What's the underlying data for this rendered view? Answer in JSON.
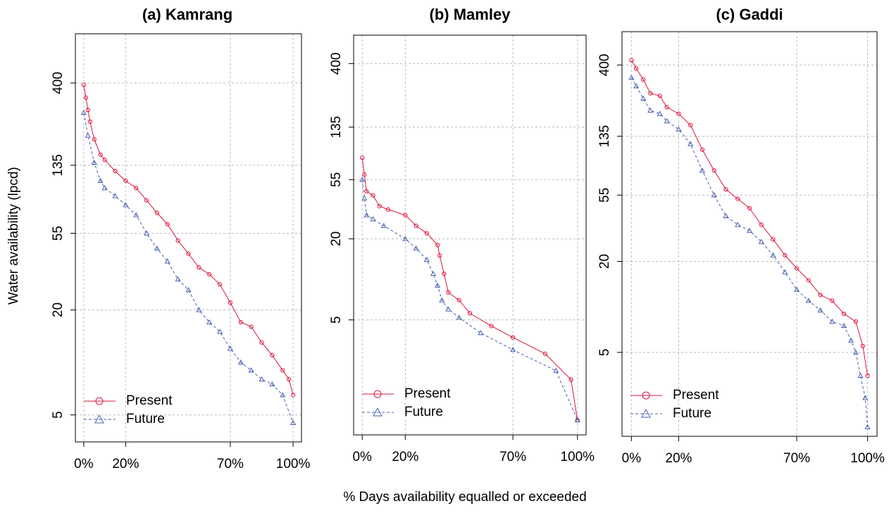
{
  "xlabel": "% Days availability equalled or exceeded",
  "ylabel": "Water availability (lpcd)",
  "chart_data": [
    {
      "type": "line",
      "title": "(a) Kamrang",
      "log_y": true,
      "grid": true,
      "legend": "bottom-left",
      "xlim": [
        -4,
        104
      ],
      "ylim": [
        3.5,
        766
      ],
      "xticks": [
        {
          "value": 0,
          "label": "0%"
        },
        {
          "value": 20,
          "label": "20%"
        },
        {
          "value": 70,
          "label": "70%"
        },
        {
          "value": 100,
          "label": "100%"
        }
      ],
      "yticks": [
        5,
        20,
        55,
        135,
        400
      ],
      "series": [
        {
          "name": "Present",
          "color": "#dc143c",
          "marker": "circle",
          "dash": false,
          "x": [
            0,
            1,
            2,
            3,
            5,
            8,
            10,
            15,
            20,
            25,
            30,
            35,
            40,
            45,
            50,
            55,
            60,
            65,
            70,
            75,
            80,
            85,
            90,
            95,
            98,
            100
          ],
          "values": [
            390,
            330,
            280,
            240,
            190,
            155,
            145,
            125,
            110,
            100,
            85,
            72,
            62,
            50,
            42,
            35,
            32,
            28,
            22,
            17,
            16,
            13,
            11,
            9,
            8,
            6.5
          ]
        },
        {
          "name": "Future",
          "color": "#4a62b0",
          "marker": "triangle",
          "dash": true,
          "x": [
            0,
            2,
            5,
            8,
            10,
            15,
            20,
            25,
            30,
            35,
            40,
            45,
            50,
            55,
            60,
            65,
            70,
            75,
            80,
            85,
            90,
            95,
            100
          ],
          "values": [
            270,
            200,
            140,
            110,
            100,
            90,
            80,
            70,
            55,
            45,
            38,
            30,
            26,
            20,
            17,
            15,
            12,
            10,
            9,
            8,
            7.5,
            6.5,
            4.5
          ]
        }
      ]
    },
    {
      "type": "line",
      "title": "(b) Mamley",
      "log_y": true,
      "grid": true,
      "legend": "bottom-left",
      "xlim": [
        -4,
        104
      ],
      "ylim": [
        0.7,
        650
      ],
      "xticks": [
        {
          "value": 0,
          "label": "0%"
        },
        {
          "value": 20,
          "label": "20%"
        },
        {
          "value": 70,
          "label": "70%"
        },
        {
          "value": 100,
          "label": "100%"
        }
      ],
      "yticks": [
        5,
        20,
        55,
        135,
        400
      ],
      "series": [
        {
          "name": "Present",
          "color": "#dc143c",
          "marker": "circle",
          "dash": false,
          "x": [
            0,
            1,
            2,
            5,
            8,
            12,
            20,
            25,
            30,
            35,
            36,
            38,
            40,
            45,
            50,
            60,
            70,
            85,
            97,
            100
          ],
          "values": [
            80,
            60,
            45,
            42,
            35,
            33,
            30,
            25,
            22,
            18,
            15,
            11,
            8,
            7,
            5.6,
            4.5,
            3.7,
            2.8,
            1.8,
            0.9
          ]
        },
        {
          "name": "Future",
          "color": "#4a62b0",
          "marker": "triangle",
          "dash": true,
          "x": [
            0,
            1,
            2,
            5,
            10,
            20,
            25,
            30,
            33,
            35,
            37,
            40,
            45,
            55,
            70,
            90,
            100
          ],
          "values": [
            55,
            40,
            30,
            28,
            25,
            20,
            17,
            14,
            11,
            9,
            7,
            6,
            5.2,
            4,
            3,
            2.1,
            0.9
          ]
        }
      ]
    },
    {
      "type": "line",
      "title": "(c) Gaddi",
      "log_y": true,
      "grid": true,
      "legend": "bottom-left",
      "xlim": [
        -4,
        104
      ],
      "ylim": [
        1.39,
        665
      ],
      "xticks": [
        {
          "value": 0,
          "label": "0%"
        },
        {
          "value": 20,
          "label": "20%"
        },
        {
          "value": 70,
          "label": "70%"
        },
        {
          "value": 100,
          "label": "100%"
        }
      ],
      "yticks": [
        5,
        20,
        55,
        135,
        400
      ],
      "series": [
        {
          "name": "Present",
          "color": "#dc143c",
          "marker": "circle",
          "dash": false,
          "x": [
            0,
            2,
            5,
            8,
            12,
            15,
            20,
            25,
            30,
            35,
            40,
            45,
            50,
            55,
            60,
            65,
            70,
            75,
            80,
            85,
            90,
            95,
            98,
            100
          ],
          "values": [
            430,
            380,
            320,
            260,
            250,
            210,
            190,
            160,
            110,
            80,
            60,
            52,
            45,
            35,
            28,
            22,
            18,
            15,
            12,
            11,
            9,
            8,
            5.5,
            3.5
          ]
        },
        {
          "name": "Future",
          "color": "#4a62b0",
          "marker": "triangle",
          "dash": true,
          "x": [
            0,
            2,
            5,
            8,
            12,
            15,
            20,
            25,
            30,
            35,
            40,
            45,
            50,
            55,
            60,
            65,
            70,
            75,
            80,
            85,
            90,
            93,
            95,
            97,
            99,
            100
          ],
          "values": [
            330,
            290,
            240,
            200,
            190,
            170,
            150,
            120,
            80,
            55,
            40,
            35,
            32,
            27,
            22,
            17,
            13,
            11,
            9.5,
            8,
            7.5,
            6,
            5,
            3.5,
            2.5,
            1.6
          ]
        }
      ]
    }
  ]
}
